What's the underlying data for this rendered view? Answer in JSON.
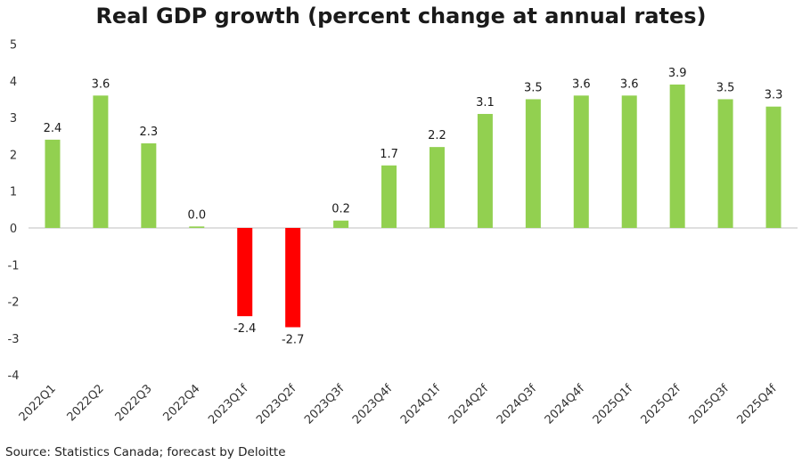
{
  "chart_data": {
    "type": "bar",
    "title": "Real GDP growth (percent change at annual rates)",
    "xlabel": "",
    "ylabel": "",
    "ylim": [
      -4,
      5
    ],
    "yticks": [
      5,
      4,
      3,
      2,
      1,
      0,
      -1,
      -2,
      -3,
      -4
    ],
    "grid": false,
    "categories": [
      "2022Q1",
      "2022Q2",
      "2022Q3",
      "2022Q4",
      "2023Q1f",
      "2023Q2f",
      "2023Q3f",
      "2023Q4f",
      "2024Q1f",
      "2024Q2f",
      "2024Q3f",
      "2024Q4f",
      "2025Q1f",
      "2025Q2f",
      "2025Q3f",
      "2025Q4f"
    ],
    "values": [
      2.4,
      3.6,
      2.3,
      0.04,
      -2.4,
      -2.7,
      0.2,
      1.7,
      2.2,
      3.1,
      3.5,
      3.6,
      3.6,
      3.9,
      3.5,
      3.3
    ],
    "data_labels": [
      "2.4",
      "3.6",
      "2.3",
      "0.0",
      "-2.4",
      "-2.7",
      "0.2",
      "1.7",
      "2.2",
      "3.1",
      "3.5",
      "3.6",
      "3.6",
      "3.9",
      "3.5",
      "3.3"
    ],
    "colors": {
      "positive": "#92d050",
      "negative": "#ff0000",
      "axis": "#bfbfbf"
    }
  },
  "source": "Source: Statistics Canada; forecast by Deloitte"
}
